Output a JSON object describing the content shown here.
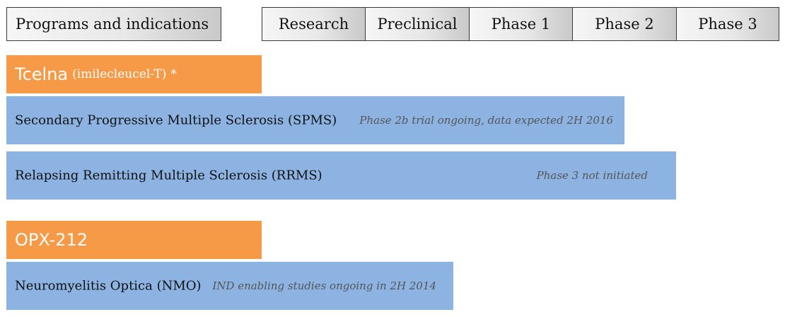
{
  "header": {
    "programs_label": "Programs and indications",
    "phases": [
      {
        "label": "Research"
      },
      {
        "label": "Preclinical"
      },
      {
        "label": "Phase 1"
      },
      {
        "label": "Phase 2"
      },
      {
        "label": "Phase 3"
      }
    ]
  },
  "programs": [
    {
      "name": "Tcelna",
      "generic": "(imilecleucel-T)",
      "marker": "*",
      "indications": [
        {
          "name": "Secondary Progressive Multiple Sclerosis (SPMS)",
          "status": "Phase 2b trial ongoing, data expected 2H 2016",
          "progress_phases": 3.5
        },
        {
          "name": "Relapsing Remitting Multiple Sclerosis (RRMS)",
          "status": "Phase 3 not initiated",
          "progress_phases": 4.0
        }
      ]
    },
    {
      "name": "OPX-212",
      "generic": "",
      "marker": "",
      "indications": [
        {
          "name": "Neuromyelitis Optica (NMO)",
          "status": "IND enabling studies ongoing in 2H 2014",
          "progress_phases": 1.85
        }
      ]
    }
  ],
  "colors": {
    "program_bar": "#f79a47",
    "indication_bar": "#8db3e2",
    "header_border": "#3a3a3a"
  }
}
